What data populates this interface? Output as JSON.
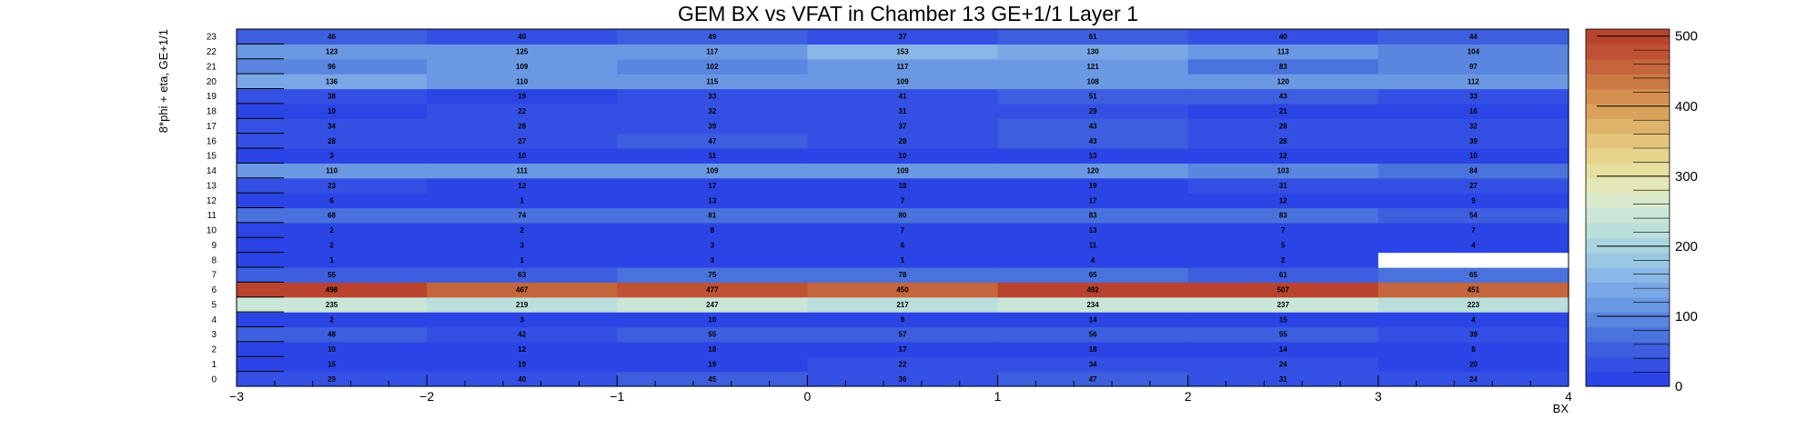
{
  "chart_data": {
    "type": "heatmap",
    "title": "GEM BX vs VFAT in Chamber 13 GE+1/1 Layer 1",
    "xlabel": "BX",
    "ylabel": "8*phi + eta, GE+1/1",
    "x_edges": [
      -3,
      -2,
      -1,
      0,
      1,
      2,
      3,
      4
    ],
    "x_ticks": [
      -3,
      -2,
      -1,
      0,
      1,
      2,
      3,
      4
    ],
    "xlim": [
      -3,
      4
    ],
    "y_categories": [
      0,
      1,
      2,
      3,
      4,
      5,
      6,
      7,
      8,
      9,
      10,
      11,
      12,
      13,
      14,
      15,
      16,
      17,
      18,
      19,
      20,
      21,
      22,
      23
    ],
    "values": [
      [
        29,
        40,
        45,
        36,
        47,
        31,
        24
      ],
      [
        15,
        19,
        19,
        22,
        34,
        24,
        20
      ],
      [
        10,
        12,
        18,
        17,
        18,
        14,
        8
      ],
      [
        48,
        42,
        55,
        57,
        56,
        55,
        39
      ],
      [
        2,
        3,
        10,
        9,
        14,
        15,
        4
      ],
      [
        235,
        219,
        247,
        217,
        234,
        237,
        223
      ],
      [
        498,
        467,
        477,
        450,
        492,
        507,
        451
      ],
      [
        55,
        63,
        75,
        78,
        65,
        61,
        65
      ],
      [
        1,
        1,
        3,
        1,
        4,
        2,
        null
      ],
      [
        2,
        3,
        3,
        6,
        11,
        5,
        4
      ],
      [
        2,
        2,
        8,
        7,
        13,
        7,
        7
      ],
      [
        68,
        74,
        81,
        80,
        83,
        83,
        54
      ],
      [
        6,
        1,
        13,
        7,
        17,
        12,
        9
      ],
      [
        23,
        12,
        17,
        18,
        19,
        31,
        27
      ],
      [
        110,
        111,
        109,
        109,
        120,
        103,
        84
      ],
      [
        3,
        10,
        11,
        10,
        13,
        12,
        10
      ],
      [
        28,
        27,
        47,
        28,
        43,
        28,
        39
      ],
      [
        34,
        28,
        39,
        37,
        43,
        28,
        32
      ],
      [
        10,
        22,
        32,
        31,
        29,
        21,
        16
      ],
      [
        38,
        19,
        33,
        41,
        51,
        43,
        33
      ],
      [
        136,
        110,
        115,
        109,
        108,
        120,
        112
      ],
      [
        96,
        109,
        102,
        117,
        121,
        83,
        97
      ],
      [
        123,
        125,
        117,
        153,
        130,
        113,
        104
      ],
      [
        46,
        40,
        49,
        37,
        61,
        40,
        44
      ]
    ],
    "zlim": [
      0,
      510
    ],
    "colorbar_ticks": [
      0,
      100,
      200,
      300,
      400,
      500
    ],
    "colormap": [
      "#2b44e6",
      "#3450e4",
      "#3d5fdf",
      "#4a72dc",
      "#5a86df",
      "#6b98e2",
      "#7aa8e6",
      "#8ab8e6",
      "#9ac8e3",
      "#aad5df",
      "#bbdfda",
      "#cae6d6",
      "#d8eacb",
      "#e2e8b8",
      "#e6e0a0",
      "#e6d38c",
      "#e4c47a",
      "#dfb46a",
      "#d9a25c",
      "#d38e50",
      "#cc7a45",
      "#c5653c",
      "#bf5234",
      "#b9432e"
    ]
  }
}
